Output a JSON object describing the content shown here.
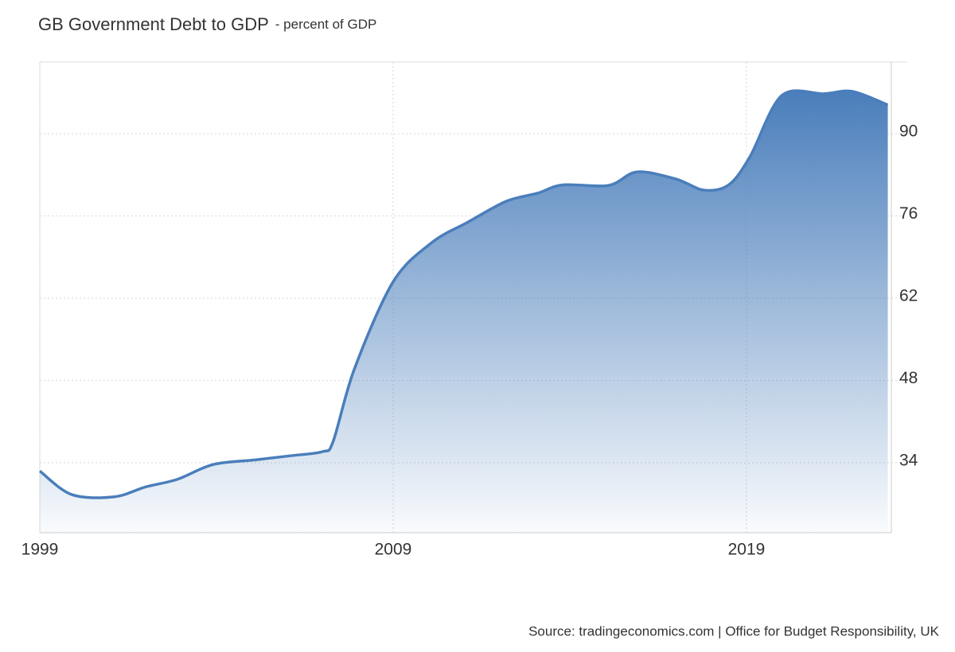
{
  "chart_data": {
    "type": "area",
    "title": "GB Government Debt to GDP",
    "subtitle": "- percent of GDP",
    "source": "Source: tradingeconomics.com | Office for Budget Responsibility, UK",
    "color": "#4a7ebb",
    "x": [
      1999.0,
      1999.9,
      2001.1,
      2002.0,
      2002.9,
      2003.9,
      2005.1,
      2006.1,
      2007.0,
      2007.3,
      2007.9,
      2009.0,
      2010.1,
      2011.1,
      2012.2,
      2013.1,
      2013.8,
      2015.1,
      2015.9,
      2017.0,
      2017.8,
      2018.5,
      2019.1,
      2020.0,
      2021.2,
      2022.0,
      2023.0
    ],
    "values": [
      32.6,
      28.6,
      28.2,
      29.9,
      31.2,
      33.7,
      34.5,
      35.2,
      35.9,
      37.6,
      49.9,
      64.8,
      71.5,
      74.9,
      78.5,
      79.9,
      81.3,
      81.2,
      83.5,
      82.3,
      80.4,
      81.3,
      86.1,
      96.5,
      96.8,
      97.2,
      94.9
    ],
    "xlim": [
      1999,
      2023.1
    ],
    "ylim": [
      22.1,
      102.2
    ],
    "xticks": [
      1999,
      2009,
      2019
    ],
    "yticks": [
      34,
      48,
      62,
      76,
      90
    ],
    "grid": true
  }
}
